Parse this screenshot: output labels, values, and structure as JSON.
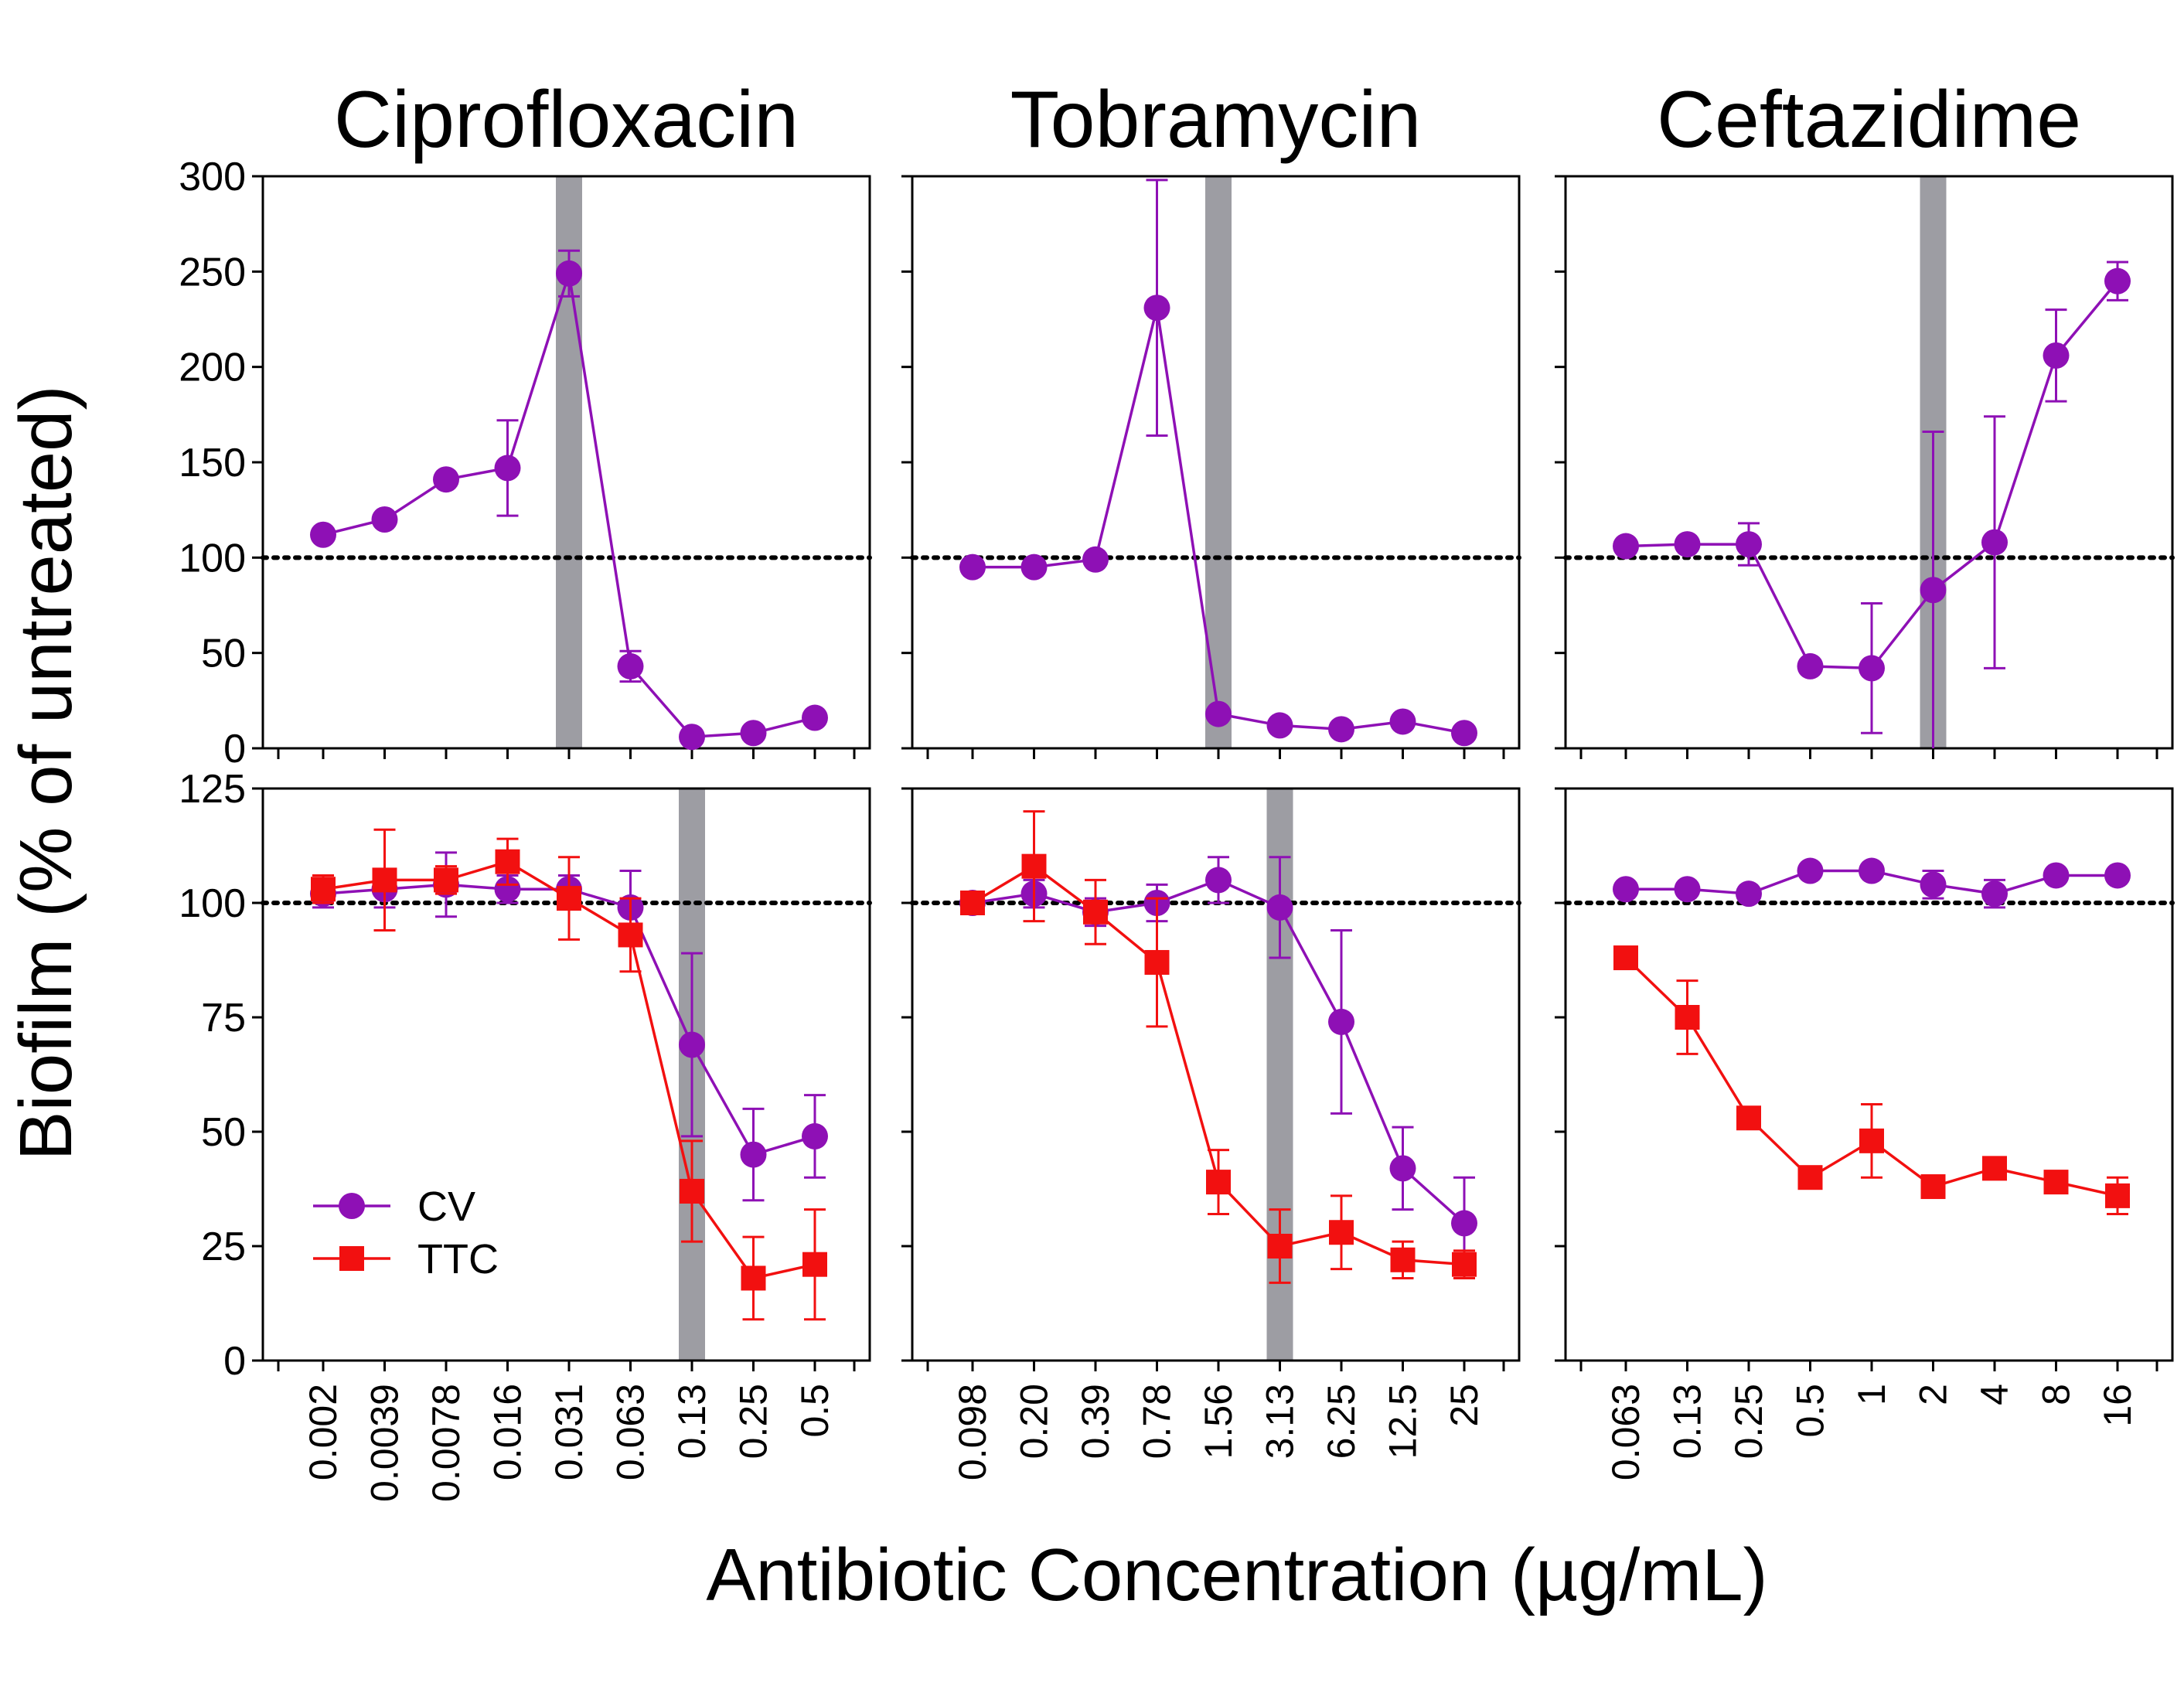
{
  "figure": {
    "ylabel": "Biofilm (% of untreated)",
    "xlabel": "Antibiotic Concentration (µg/mL)"
  },
  "colors": {
    "CV": "#8e10b5",
    "TTC": "#f21010",
    "mic_band": "#9d9da3"
  },
  "legend": [
    "CV",
    "TTC"
  ],
  "chart_data": [
    {
      "type": "line",
      "panel": "top",
      "title": "Ciprofloxacin",
      "ylim": [
        0,
        300
      ],
      "yticks": [
        0,
        50,
        100,
        150,
        200,
        250,
        300
      ],
      "categories": [
        "0.002",
        "0.0039",
        "0.0078",
        "0.016",
        "0.031",
        "0.063",
        "0.13",
        "0.25",
        "0.5"
      ],
      "baseline": 100,
      "mic_index": 4,
      "series": [
        {
          "name": "CV",
          "marker": "circle",
          "values": [
            112,
            120,
            141,
            147,
            249,
            43,
            6,
            8,
            16
          ],
          "errors": [
            0,
            0,
            0,
            25,
            12,
            8,
            0,
            0,
            0
          ]
        }
      ]
    },
    {
      "type": "line",
      "panel": "top",
      "title": "Tobramycin",
      "ylim": [
        0,
        300
      ],
      "yticks": [
        0,
        50,
        100,
        150,
        200,
        250,
        300
      ],
      "categories": [
        "0.098",
        "0.20",
        "0.39",
        "0.78",
        "1.56",
        "3.13",
        "6.25",
        "12.5",
        "25"
      ],
      "baseline": 100,
      "mic_index": 4,
      "series": [
        {
          "name": "CV",
          "marker": "circle",
          "values": [
            95,
            95,
            99,
            231,
            18,
            12,
            10,
            14,
            8
          ],
          "errors": [
            0,
            0,
            0,
            67,
            0,
            0,
            0,
            0,
            0
          ]
        }
      ]
    },
    {
      "type": "line",
      "panel": "top",
      "title": "Ceftazidime",
      "ylim": [
        0,
        300
      ],
      "yticks": [
        0,
        50,
        100,
        150,
        200,
        250,
        300
      ],
      "categories": [
        "0.063",
        "0.13",
        "0.25",
        "0.5",
        "1",
        "2",
        "4",
        "8",
        "16"
      ],
      "baseline": 100,
      "mic_index": 5,
      "series": [
        {
          "name": "CV",
          "marker": "circle",
          "values": [
            106,
            107,
            107,
            43,
            42,
            83,
            108,
            206,
            245
          ],
          "errors": [
            0,
            0,
            11,
            0,
            34,
            83,
            66,
            24,
            10
          ]
        }
      ]
    },
    {
      "type": "line",
      "panel": "bottom",
      "ylim": [
        0,
        125
      ],
      "yticks": [
        0,
        25,
        50,
        75,
        100,
        125
      ],
      "categories": [
        "0.002",
        "0.0039",
        "0.0078",
        "0.016",
        "0.031",
        "0.063",
        "0.13",
        "0.25",
        "0.5"
      ],
      "baseline": 100,
      "mic_index": 6,
      "series": [
        {
          "name": "CV",
          "marker": "circle",
          "values": [
            102,
            103,
            104,
            103,
            103,
            99,
            69,
            45,
            49
          ],
          "errors": [
            3,
            4,
            7,
            3,
            3,
            8,
            20,
            10,
            9
          ]
        },
        {
          "name": "TTC",
          "marker": "square",
          "values": [
            103,
            105,
            105,
            109,
            101,
            93,
            37,
            18,
            21
          ],
          "errors": [
            3,
            11,
            3,
            5,
            9,
            8,
            11,
            9,
            12
          ]
        }
      ]
    },
    {
      "type": "line",
      "panel": "bottom",
      "ylim": [
        0,
        125
      ],
      "yticks": [
        0,
        25,
        50,
        75,
        100,
        125
      ],
      "categories": [
        "0.098",
        "0.20",
        "0.39",
        "0.78",
        "1.56",
        "3.13",
        "6.25",
        "12.5",
        "25"
      ],
      "baseline": 100,
      "mic_index": 5,
      "series": [
        {
          "name": "CV",
          "marker": "circle",
          "values": [
            100,
            102,
            98,
            100,
            105,
            99,
            74,
            42,
            30
          ],
          "errors": [
            0,
            3,
            3,
            4,
            5,
            11,
            20,
            9,
            10
          ]
        },
        {
          "name": "TTC",
          "marker": "square",
          "values": [
            100,
            108,
            98,
            87,
            39,
            25,
            28,
            22,
            21
          ],
          "errors": [
            0,
            12,
            7,
            14,
            7,
            8,
            8,
            4,
            3
          ]
        }
      ]
    },
    {
      "type": "line",
      "panel": "bottom",
      "ylim": [
        0,
        125
      ],
      "yticks": [
        0,
        25,
        50,
        75,
        100,
        125
      ],
      "categories": [
        "0.063",
        "0.13",
        "0.25",
        "0.5",
        "1",
        "2",
        "4",
        "8",
        "16"
      ],
      "baseline": 100,
      "mic_index": null,
      "series": [
        {
          "name": "CV",
          "marker": "circle",
          "values": [
            103,
            103,
            102,
            107,
            107,
            104,
            102,
            106,
            106
          ],
          "errors": [
            0,
            0,
            0,
            0,
            0,
            3,
            3,
            0,
            0
          ]
        },
        {
          "name": "TTC",
          "marker": "square",
          "values": [
            88,
            75,
            53,
            40,
            48,
            38,
            42,
            39,
            36
          ],
          "errors": [
            0,
            8,
            0,
            0,
            8,
            0,
            0,
            0,
            4
          ]
        }
      ]
    }
  ]
}
